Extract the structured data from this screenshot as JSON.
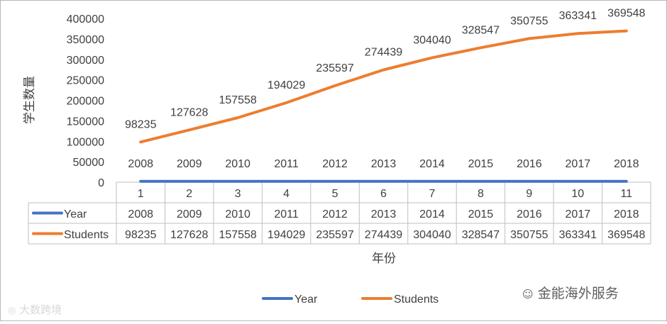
{
  "chart_data": {
    "type": "line",
    "xlabel": "年份",
    "ylabel": "学生数量",
    "ylim": [
      0,
      400000
    ],
    "yticks": [
      0,
      50000,
      100000,
      150000,
      200000,
      250000,
      300000,
      350000,
      400000
    ],
    "categories": [
      "1",
      "2",
      "3",
      "4",
      "5",
      "6",
      "7",
      "8",
      "9",
      "10",
      "11"
    ],
    "grid": false,
    "legend": "bottom",
    "data_table": true,
    "series": [
      {
        "name": "Year",
        "color": "#4472c4",
        "values": [
          2008,
          2009,
          2010,
          2011,
          2012,
          2013,
          2014,
          2015,
          2016,
          2017,
          2018
        ]
      },
      {
        "name": "Students",
        "color": "#ed7d31",
        "values": [
          98235,
          127628,
          157558,
          194029,
          235597,
          274439,
          304040,
          328547,
          350755,
          363341,
          369548
        ]
      }
    ]
  },
  "watermarks": {
    "left": "大数跨境",
    "right": "金能海外服务"
  }
}
